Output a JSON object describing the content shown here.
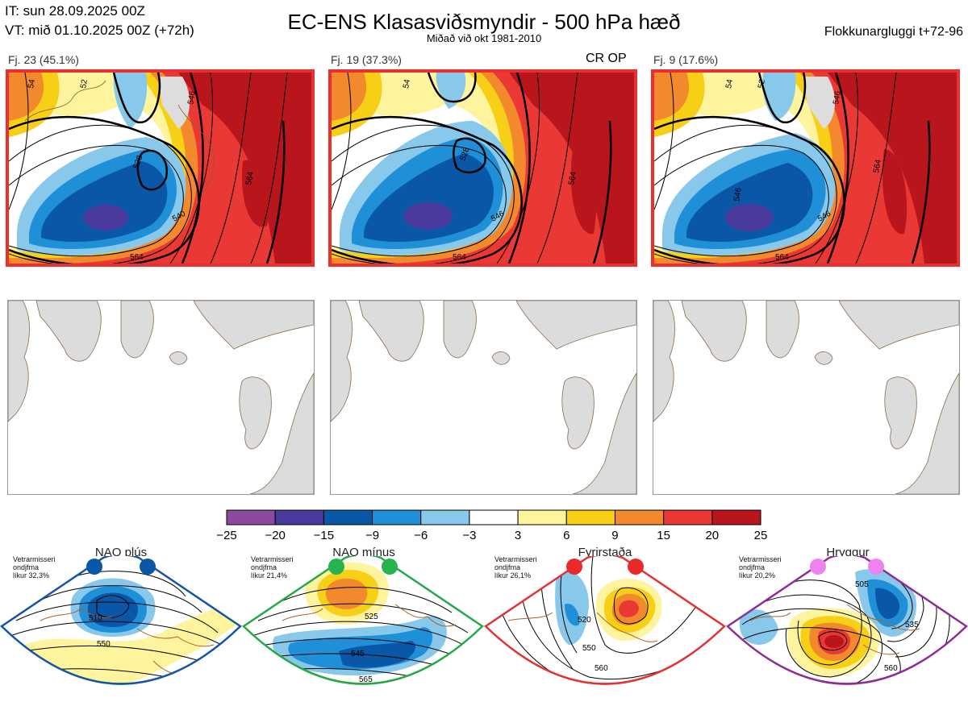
{
  "header": {
    "it": "IT: sun 28.09.2025 00Z",
    "vt": "VT: mið 01.10.2025 00Z  (+72h)",
    "title": "EC-ENS Klasasviðsmyndir - 500 hPa hæð",
    "subtitle": "Miðað við okt 1981-2010",
    "window": "Flokkunargluggi t+72-96"
  },
  "clusters": [
    {
      "label": "Fj. 23 (45.1%)",
      "contours": [
        "54",
        "52",
        "528",
        "546",
        "540",
        "564",
        "546",
        "564",
        "52"
      ],
      "border_color": "#e83030"
    },
    {
      "label": "Fj. 19 (37.3%)",
      "contours": [
        "54",
        "528",
        "546",
        "564",
        "546",
        "564",
        "52"
      ],
      "border_color": "#e83030"
    },
    {
      "label": "Fj. 9 (17.6%)",
      "contours": [
        "54",
        "52",
        "546",
        "564",
        "546",
        "564",
        "52",
        "546"
      ],
      "border_color": "#e83030"
    }
  ],
  "cr_op": "CR OP",
  "colorbar": {
    "colors": [
      "#8c4a9e",
      "#4b3a9e",
      "#0a57a8",
      "#1f90d8",
      "#88c8ea",
      "#ffffff",
      "#fff49e",
      "#f7cf17",
      "#f28a2d",
      "#ea3835",
      "#b8151d"
    ],
    "ticks": [
      "−25",
      "−20",
      "−15",
      "−9",
      "−6",
      "−3",
      "3",
      "6",
      "9",
      "15",
      "20",
      "25"
    ]
  },
  "regimes": [
    {
      "name": "NAO plús",
      "desc": "Vetrarmisseri\nondjfma\nlíkur 32,3%",
      "contours": [
        "510",
        "550"
      ],
      "border_color": "#1555a6",
      "dot_color": "#0a57a8"
    },
    {
      "name": "NAO mínus",
      "desc": "Vetrarmisseri\nondjfma\nlíkur 21,4%",
      "contours": [
        "525",
        "545",
        "565"
      ],
      "border_color": "#27a845",
      "dot_color": "#27b34d"
    },
    {
      "name": "Fyrirstaða",
      "desc": "Vetrarmisseri\nondjfma\nlíkur 26,1%",
      "contours": [
        "520",
        "550",
        "560"
      ],
      "border_color": "#e23232",
      "dot_color": "#ea2a2a"
    },
    {
      "name": "Hryggur",
      "desc": "Vetrarmisseri\nondjfma\nlíkur 20,2%",
      "contours": [
        "505",
        "535",
        "560"
      ],
      "border_color": "#8e2d96",
      "dot_color": "#ee82ee"
    }
  ]
}
